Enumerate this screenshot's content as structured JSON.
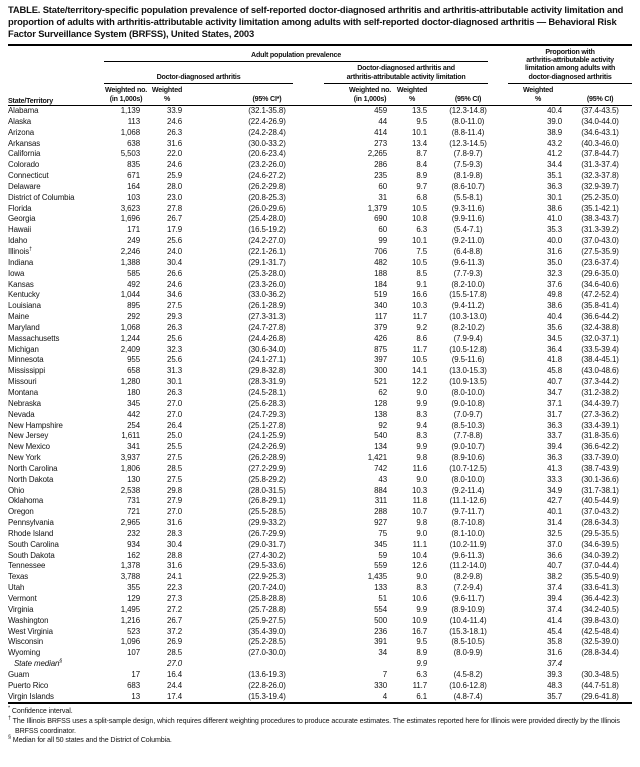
{
  "title": "TABLE. State/territory-specific population prevalence of self-reported doctor-diagnosed arthritis and arthritis-attributable activity limitation and proportion of adults with arthritis-attributable activity limitation among adults with self-reported doctor-diagnosed arthritis — Behavioral Risk Factor Surveillance System (BRFSS), United States, 2003",
  "header": {
    "state_col": "State/Territory",
    "group_adult": "Adult population prevalence",
    "group_dd": "Doctor-diagnosed arthritis",
    "group_ddl": "Doctor-diagnosed arthritis and\narthritis-attributable activity limitation",
    "group_prop": "Proportion with\narthritis-attributable activity\nlimitation among adults with\ndoctor-diagnosed arthritis",
    "weighted_no": "Weighted no.\n(in 1,000s)",
    "weighted_pct": "Weighted\n%",
    "ci_star": "(95% CI*)",
    "ci": "(95% CI)"
  },
  "rows": [
    {
      "name": "Alabama",
      "c": [
        "1,139",
        "33.9",
        "(32.1-35.8)",
        "459",
        "13.5",
        "(12.3-14.8)",
        "40.4",
        "(37.4-43.5)"
      ]
    },
    {
      "name": "Alaska",
      "c": [
        "113",
        "24.6",
        "(22.4-26.9)",
        "44",
        "9.5",
        "(8.0-11.0)",
        "39.0",
        "(34.0-44.0)"
      ]
    },
    {
      "name": "Arizona",
      "c": [
        "1,068",
        "26.3",
        "(24.2-28.4)",
        "414",
        "10.1",
        "(8.8-11.4)",
        "38.9",
        "(34.6-43.1)"
      ]
    },
    {
      "name": "Arkansas",
      "c": [
        "638",
        "31.6",
        "(30.0-33.2)",
        "273",
        "13.4",
        "(12.3-14.5)",
        "43.2",
        "(40.3-46.0)"
      ]
    },
    {
      "name": "California",
      "c": [
        "5,503",
        "22.0",
        "(20.6-23.4)",
        "2,265",
        "8.7",
        "(7.8-9.7)",
        "41.2",
        "(37.8-44.7)"
      ]
    },
    {
      "name": "Colorado",
      "c": [
        "835",
        "24.6",
        "(23.2-26.0)",
        "286",
        "8.4",
        "(7.5-9.3)",
        "34.4",
        "(31.3-37.4)"
      ]
    },
    {
      "name": "Connecticut",
      "c": [
        "671",
        "25.9",
        "(24.6-27.2)",
        "235",
        "8.9",
        "(8.1-9.8)",
        "35.1",
        "(32.3-37.8)"
      ]
    },
    {
      "name": "Delaware",
      "c": [
        "164",
        "28.0",
        "(26.2-29.8)",
        "60",
        "9.7",
        "(8.6-10.7)",
        "36.3",
        "(32.9-39.7)"
      ]
    },
    {
      "name": "District of Columbia",
      "c": [
        "103",
        "23.0",
        "(20.8-25.3)",
        "31",
        "6.8",
        "(5.5-8.1)",
        "30.1",
        "(25.2-35.0)"
      ]
    },
    {
      "name": "Florida",
      "c": [
        "3,623",
        "27.8",
        "(26.0-29.6)",
        "1,379",
        "10.5",
        "(9.3-11.6)",
        "38.6",
        "(35.1-42.1)"
      ]
    },
    {
      "name": "Georgia",
      "c": [
        "1,696",
        "26.7",
        "(25.4-28.0)",
        "690",
        "10.8",
        "(9.9-11.6)",
        "41.0",
        "(38.3-43.7)"
      ]
    },
    {
      "name": "Hawaii",
      "c": [
        "171",
        "17.9",
        "(16.5-19.2)",
        "60",
        "6.3",
        "(5.4-7.1)",
        "35.3",
        "(31.3-39.2)"
      ]
    },
    {
      "name": "Idaho",
      "c": [
        "249",
        "25.6",
        "(24.2-27.0)",
        "99",
        "10.1",
        "(9.2-11.0)",
        "40.0",
        "(37.0-43.0)"
      ]
    },
    {
      "name": "Illinois",
      "sup": "†",
      "c": [
        "2,246",
        "24.0",
        "(22.1-26.1)",
        "706",
        "7.5",
        "(6.4-8.8)",
        "31.6",
        "(27.5-35.9)"
      ]
    },
    {
      "name": "Indiana",
      "c": [
        "1,388",
        "30.4",
        "(29.1-31.7)",
        "482",
        "10.5",
        "(9.6-11.3)",
        "35.0",
        "(23.6-37.4)"
      ]
    },
    {
      "name": "Iowa",
      "c": [
        "585",
        "26.6",
        "(25.3-28.0)",
        "188",
        "8.5",
        "(7.7-9.3)",
        "32.3",
        "(29.6-35.0)"
      ]
    },
    {
      "name": "Kansas",
      "c": [
        "492",
        "24.6",
        "(23.3-26.0)",
        "184",
        "9.1",
        "(8.2-10.0)",
        "37.6",
        "(34.6-40.6)"
      ]
    },
    {
      "name": "Kentucky",
      "c": [
        "1,044",
        "34.6",
        "(33.0-36.2)",
        "519",
        "16.6",
        "(15.5-17.8)",
        "49.8",
        "(47.2-52.4)"
      ]
    },
    {
      "name": "Louisiana",
      "c": [
        "895",
        "27.5",
        "(26.1-28.9)",
        "340",
        "10.3",
        "(9.4-11.2)",
        "38.6",
        "(35.8-41.4)"
      ]
    },
    {
      "name": "Maine",
      "c": [
        "292",
        "29.3",
        "(27.3-31.3)",
        "117",
        "11.7",
        "(10.3-13.0)",
        "40.4",
        "(36.6-44.2)"
      ]
    },
    {
      "name": "Maryland",
      "c": [
        "1,068",
        "26.3",
        "(24.7-27.8)",
        "379",
        "9.2",
        "(8.2-10.2)",
        "35.6",
        "(32.4-38.8)"
      ]
    },
    {
      "name": "Massachusetts",
      "c": [
        "1,244",
        "25.6",
        "(24.4-26.8)",
        "426",
        "8.6",
        "(7.9-9.4)",
        "34.5",
        "(32.0-37.1)"
      ]
    },
    {
      "name": "Michigan",
      "c": [
        "2,409",
        "32.3",
        "(30.6-34.0)",
        "875",
        "11.7",
        "(10.5-12.8)",
        "36.4",
        "(33.5-39.4)"
      ]
    },
    {
      "name": "Minnesota",
      "c": [
        "955",
        "25.6",
        "(24.1-27.1)",
        "397",
        "10.5",
        "(9.5-11.6)",
        "41.8",
        "(38.4-45.1)"
      ]
    },
    {
      "name": "Mississippi",
      "c": [
        "658",
        "31.3",
        "(29.8-32.8)",
        "300",
        "14.1",
        "(13.0-15.3)",
        "45.8",
        "(43.0-48.6)"
      ]
    },
    {
      "name": "Missouri",
      "c": [
        "1,280",
        "30.1",
        "(28.3-31.9)",
        "521",
        "12.2",
        "(10.9-13.5)",
        "40.7",
        "(37.3-44.2)"
      ]
    },
    {
      "name": "Montana",
      "c": [
        "180",
        "26.3",
        "(24.5-28.1)",
        "62",
        "9.0",
        "(8.0-10.0)",
        "34.7",
        "(31.2-38.2)"
      ]
    },
    {
      "name": "Nebraska",
      "c": [
        "345",
        "27.0",
        "(25.6-28.3)",
        "128",
        "9.9",
        "(9.0-10.8)",
        "37.1",
        "(34.4-39.7)"
      ]
    },
    {
      "name": "Nevada",
      "c": [
        "442",
        "27.0",
        "(24.7-29.3)",
        "138",
        "8.3",
        "(7.0-9.7)",
        "31.7",
        "(27.3-36.2)"
      ]
    },
    {
      "name": "New Hampshire",
      "c": [
        "254",
        "26.4",
        "(25.1-27.8)",
        "92",
        "9.4",
        "(8.5-10.3)",
        "36.3",
        "(33.4-39.1)"
      ]
    },
    {
      "name": "New Jersey",
      "c": [
        "1,611",
        "25.0",
        "(24.1-25.9)",
        "540",
        "8.3",
        "(7.7-8.8)",
        "33.7",
        "(31.8-35.6)"
      ]
    },
    {
      "name": "New Mexico",
      "c": [
        "341",
        "25.5",
        "(24.2-26.9)",
        "134",
        "9.9",
        "(9.0-10.7)",
        "39.4",
        "(36.6-42.2)"
      ]
    },
    {
      "name": "New York",
      "c": [
        "3,937",
        "27.5",
        "(26.2-28.9)",
        "1,421",
        "9.8",
        "(8.9-10.6)",
        "36.3",
        "(33.7-39.0)"
      ]
    },
    {
      "name": "North Carolina",
      "c": [
        "1,806",
        "28.5",
        "(27.2-29.9)",
        "742",
        "11.6",
        "(10.7-12.5)",
        "41.3",
        "(38.7-43.9)"
      ]
    },
    {
      "name": "North Dakota",
      "c": [
        "130",
        "27.5",
        "(25.8-29.2)",
        "43",
        "9.0",
        "(8.0-10.0)",
        "33.3",
        "(30.1-36.6)"
      ]
    },
    {
      "name": "Ohio",
      "c": [
        "2,538",
        "29.8",
        "(28.0-31.5)",
        "884",
        "10.3",
        "(9.2-11.4)",
        "34.9",
        "(31.7-38.1)"
      ]
    },
    {
      "name": "Oklahoma",
      "c": [
        "731",
        "27.9",
        "(26.8-29.1)",
        "311",
        "11.8",
        "(11.1-12.6)",
        "42.7",
        "(40.5-44.9)"
      ]
    },
    {
      "name": "Oregon",
      "c": [
        "721",
        "27.0",
        "(25.5-28.5)",
        "288",
        "10.7",
        "(9.7-11.7)",
        "40.1",
        "(37.0-43.2)"
      ]
    },
    {
      "name": "Pennsylvania",
      "c": [
        "2,965",
        "31.6",
        "(29.9-33.2)",
        "927",
        "9.8",
        "(8.7-10.8)",
        "31.4",
        "(28.6-34.3)"
      ]
    },
    {
      "name": "Rhode Island",
      "c": [
        "232",
        "28.3",
        "(26.7-29.9)",
        "75",
        "9.0",
        "(8.1-10.0)",
        "32.5",
        "(29.5-35.5)"
      ]
    },
    {
      "name": "South Carolina",
      "c": [
        "934",
        "30.4",
        "(29.0-31.7)",
        "345",
        "11.1",
        "(10.2-11.9)",
        "37.0",
        "(34.6-39.5)"
      ]
    },
    {
      "name": "South Dakota",
      "c": [
        "162",
        "28.8",
        "(27.4-30.2)",
        "59",
        "10.4",
        "(9.6-11.3)",
        "36.6",
        "(34.0-39.2)"
      ]
    },
    {
      "name": "Tennessee",
      "c": [
        "1,378",
        "31.6",
        "(29.5-33.6)",
        "559",
        "12.6",
        "(11.2-14.0)",
        "40.7",
        "(37.0-44.4)"
      ]
    },
    {
      "name": "Texas",
      "c": [
        "3,788",
        "24.1",
        "(22.9-25.3)",
        "1,435",
        "9.0",
        "(8.2-9.8)",
        "38.2",
        "(35.5-40.9)"
      ]
    },
    {
      "name": "Utah",
      "c": [
        "355",
        "22.3",
        "(20.7-24.0)",
        "133",
        "8.3",
        "(7.2-9.4)",
        "37.4",
        "(33.6-41.3)"
      ]
    },
    {
      "name": "Vermont",
      "c": [
        "129",
        "27.3",
        "(25.8-28.8)",
        "51",
        "10.6",
        "(9.6-11.7)",
        "39.4",
        "(36.4-42.3)"
      ]
    },
    {
      "name": "Virginia",
      "c": [
        "1,495",
        "27.2",
        "(25.7-28.8)",
        "554",
        "9.9",
        "(8.9-10.9)",
        "37.4",
        "(34.2-40.5)"
      ]
    },
    {
      "name": "Washington",
      "c": [
        "1,216",
        "26.7",
        "(25.9-27.5)",
        "500",
        "10.9",
        "(10.4-11.4)",
        "41.4",
        "(39.8-43.0)"
      ]
    },
    {
      "name": "West Virginia",
      "c": [
        "523",
        "37.2",
        "(35.4-39.0)",
        "236",
        "16.7",
        "(15.3-18.1)",
        "45.4",
        "(42.5-48.4)"
      ]
    },
    {
      "name": "Wisconsin",
      "c": [
        "1,096",
        "26.9",
        "(25.2-28.5)",
        "391",
        "9.5",
        "(8.5-10.5)",
        "35.8",
        "(32.5-39.0)"
      ]
    },
    {
      "name": "Wyoming",
      "c": [
        "107",
        "28.5",
        "(27.0-30.0)",
        "34",
        "8.9",
        "(8.0-9.9)",
        "31.6",
        "(28.8-34.4)"
      ]
    },
    {
      "name": "State median",
      "sup": "§",
      "italic": true,
      "c": [
        "",
        "27.0",
        "",
        "",
        "9.9",
        "",
        "37.4",
        ""
      ]
    },
    {
      "name": "Guam",
      "c": [
        "17",
        "16.4",
        "(13.6-19.3)",
        "7",
        "6.3",
        "(4.5-8.2)",
        "39.3",
        "(30.3-48.5)"
      ]
    },
    {
      "name": "Puerto Rico",
      "c": [
        "683",
        "24.4",
        "(22.8-26.0)",
        "330",
        "11.7",
        "(10.6-12.8)",
        "48.3",
        "(44.7-51.8)"
      ]
    },
    {
      "name": "Virgin Islands",
      "c": [
        "13",
        "17.4",
        "(15.3-19.4)",
        "4",
        "6.1",
        "(4.8-7.4)",
        "35.7",
        "(29.6-41.8)"
      ]
    }
  ],
  "footnotes": [
    {
      "marker": "*",
      "text": "Confidence interval."
    },
    {
      "marker": "†",
      "text": "The Illinois BRFSS uses a split-sample design, which requires different weighting procedures to produce accurate estimates. The estimates reported here for Illinois were provided directly by the Illinois BRFSS coordinator."
    },
    {
      "marker": "§",
      "text": "Median for all 50 states and the District of Columbia."
    }
  ]
}
